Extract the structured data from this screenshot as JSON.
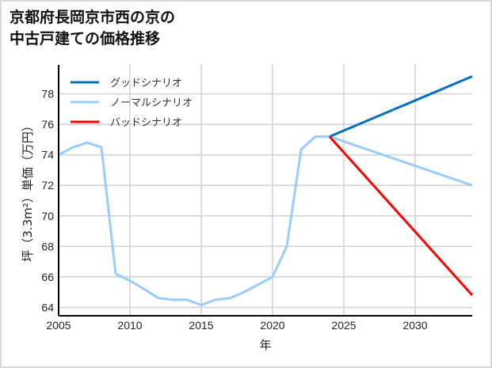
{
  "title_lines": [
    "京都府長岡京市西の京の",
    "中古戸建ての価格推移"
  ],
  "chart_data": {
    "type": "line",
    "title": "京都府長岡京市西の京の中古戸建ての価格推移",
    "xlabel": "年",
    "ylabel": "坪（3.3m²）単価（万円）",
    "xlim": [
      2005,
      2034
    ],
    "ylim": [
      63.45,
      79.9
    ],
    "xticks": [
      2005,
      2010,
      2015,
      2020,
      2025,
      2030
    ],
    "yticks": [
      64,
      66,
      68,
      70,
      72,
      74,
      76,
      78
    ],
    "grid": true,
    "legend_position": "upper left",
    "series": [
      {
        "name": "グッドシナリオ",
        "color": "#0070c0",
        "x": [
          2024,
          2034
        ],
        "y": [
          75.2,
          79.15
        ]
      },
      {
        "name": "ノーマルシナリオ",
        "color": "#99ccff",
        "x": [
          2005,
          2006,
          2007,
          2008,
          2009,
          2010,
          2011,
          2012,
          2013,
          2014,
          2015,
          2016,
          2017,
          2018,
          2019,
          2020,
          2021,
          2022,
          2023,
          2024,
          2034
        ],
        "y": [
          74.0,
          74.5,
          74.8,
          74.5,
          66.2,
          65.75,
          65.2,
          64.6,
          64.5,
          64.5,
          64.15,
          64.5,
          64.6,
          65.0,
          65.5,
          66.0,
          68.0,
          74.35,
          75.2,
          75.2,
          72.0
        ]
      },
      {
        "name": "バッドシナリオ",
        "color": "#ff0000",
        "x": [
          2024,
          2034
        ],
        "y": [
          75.2,
          64.8
        ]
      }
    ]
  }
}
